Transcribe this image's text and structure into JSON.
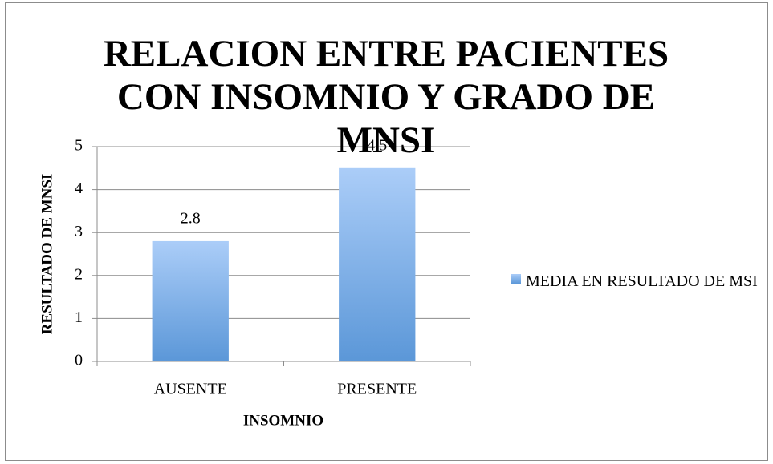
{
  "chart_data": {
    "type": "bar",
    "title": "RELACION ENTRE PACIENTES CON INSOMNIO Y GRADO DE MNSI",
    "x_label": "INSOMNIO",
    "y_label": "RESULTADO DE MNSI",
    "categories": [
      "AUSENTE",
      "PRESENTE"
    ],
    "series": [
      {
        "name": "MEDIA EN RESULTADO DE MSI",
        "color": "#5b97d8",
        "values": [
          2.8,
          4.5
        ]
      }
    ],
    "ylim": [
      0,
      5
    ],
    "yticks": [
      0,
      1,
      2,
      3,
      4,
      5
    ],
    "grid": true,
    "legend": "right"
  }
}
